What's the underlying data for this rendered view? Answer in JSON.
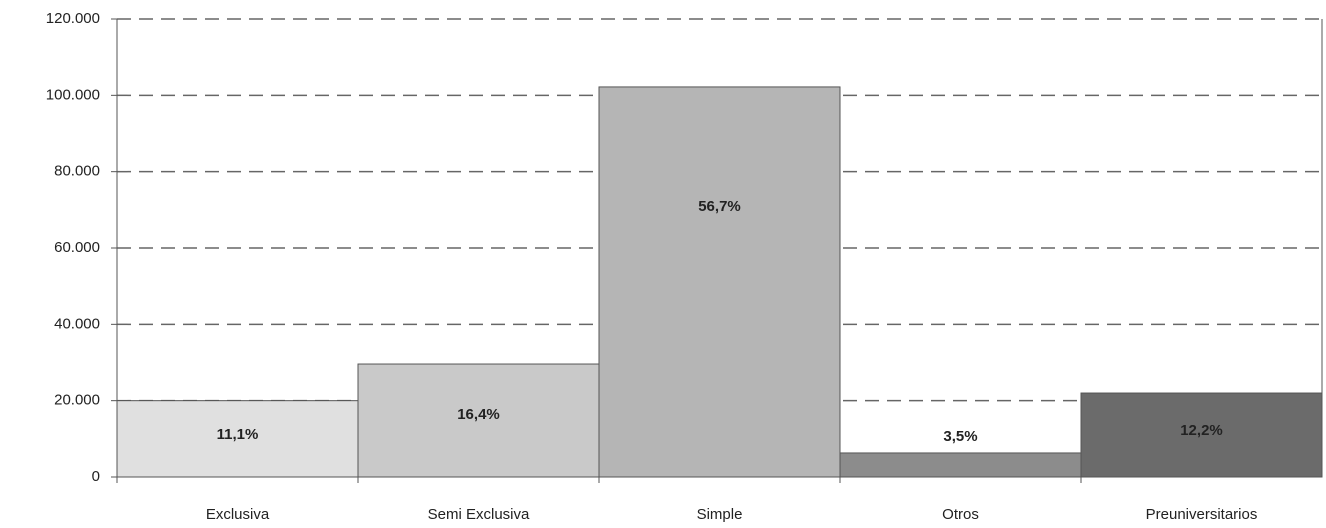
{
  "chart_data": {
    "type": "bar",
    "categories": [
      "Exclusiva",
      "Semi Exclusiva",
      "Simple",
      "Otros",
      "Preuniversitarios"
    ],
    "values": [
      20000,
      29600,
      102200,
      6300,
      22000
    ],
    "share_labels": [
      "11,1%",
      "16,4%",
      "56,7%",
      "3,5%",
      "12,2%"
    ],
    "colors": [
      "#e0e0e0",
      "#c9c9c9",
      "#b5b5b5",
      "#8c8c8c",
      "#6b6b6b"
    ],
    "ylim": [
      0,
      120000
    ],
    "yticks": [
      0,
      {
        "value": 20000,
        "label": "20.000"
      },
      {
        "value": 40000,
        "label": "40.000"
      },
      {
        "value": 60000,
        "label": "60.000"
      },
      {
        "value": 80000,
        "label": "80.000"
      },
      {
        "value": 100000,
        "label": "100.000"
      },
      {
        "value": 120000,
        "label": "120.000"
      }
    ],
    "grid": true
  }
}
